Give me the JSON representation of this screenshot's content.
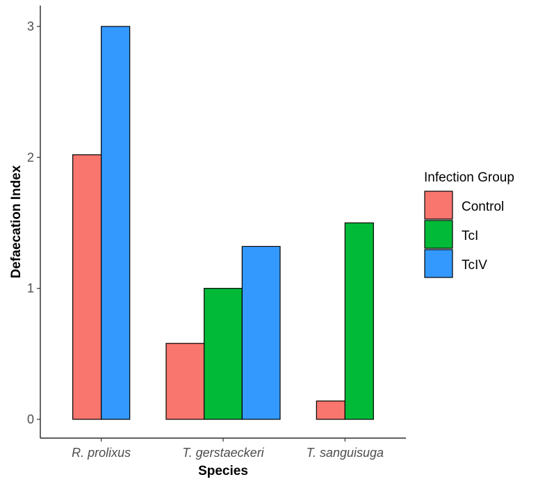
{
  "chart_data": {
    "type": "bar",
    "xlabel": "Species",
    "ylabel": "Defaecation Index",
    "ylim": [
      0,
      3.15
    ],
    "yticks": [
      0,
      1,
      2,
      3
    ],
    "grid": false,
    "legend_position": "right",
    "legend_title": "Infection Group",
    "categories": [
      "R. prolixus",
      "T. gerstaeckeri",
      "T. sanguisuga"
    ],
    "series": [
      {
        "name": "Control",
        "color": "#F8766D",
        "values": [
          2.02,
          0.58,
          0.14
        ]
      },
      {
        "name": "TcI",
        "color": "#00BA38",
        "values": [
          null,
          1.0,
          1.5
        ]
      },
      {
        "name": "TcIV",
        "color": "#3399FF",
        "values": [
          3.0,
          1.32,
          null
        ]
      }
    ]
  }
}
